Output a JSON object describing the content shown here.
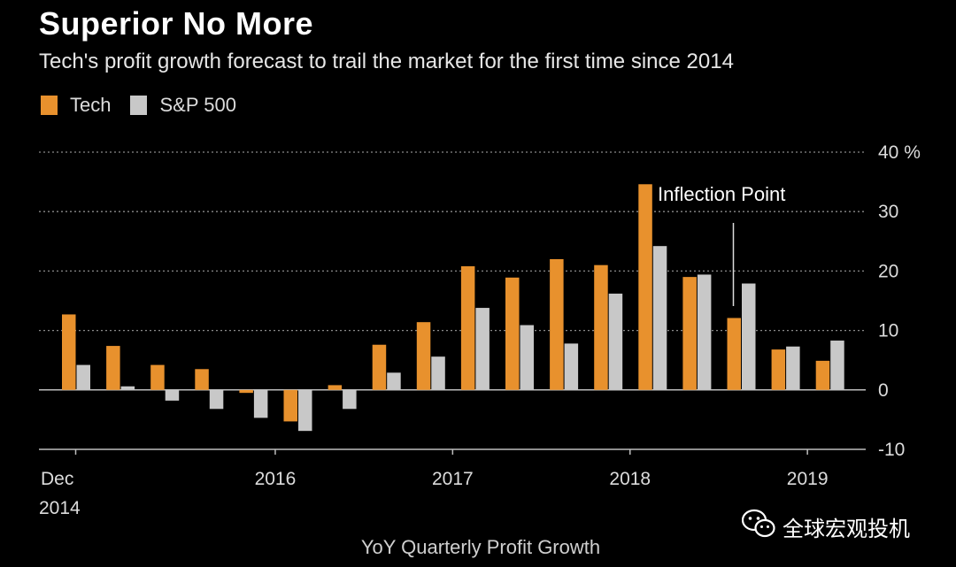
{
  "chart_data": {
    "type": "bar",
    "title": "Superior No More",
    "subtitle": "Tech's profit growth forecast to trail the market for the first time since 2014",
    "xlabel": "YoY Quarterly Profit Growth",
    "ylabel": "",
    "ylim": [
      -10,
      40
    ],
    "yticks": [
      -10,
      0,
      10,
      20,
      30,
      40
    ],
    "ytick_labels": [
      "-10",
      "0",
      "10",
      "20",
      "30",
      "40 %"
    ],
    "grid": true,
    "legend_position": "top-left",
    "categories": [
      "Q4 2014",
      "Q1 2015",
      "Q2 2015",
      "Q3 2015",
      "Q4 2015",
      "Q1 2016",
      "Q2 2016",
      "Q3 2016",
      "Q4 2016",
      "Q1 2017",
      "Q2 2017",
      "Q3 2017",
      "Q4 2017",
      "Q1 2018",
      "Q2 2018",
      "Q3 2018",
      "Q4 2018",
      "Q1 2019"
    ],
    "series": [
      {
        "name": "Tech",
        "color": "#e8912d",
        "values": [
          12.7,
          7.4,
          4.2,
          3.5,
          -0.5,
          -5.3,
          0.8,
          7.6,
          11.4,
          20.8,
          18.9,
          22.0,
          21.0,
          34.6,
          19.0,
          12.1,
          6.8,
          4.9
        ]
      },
      {
        "name": "S&P 500",
        "color": "#c8c8c8",
        "values": [
          4.2,
          0.6,
          -1.8,
          -3.2,
          -4.7,
          -6.9,
          -3.2,
          2.9,
          5.6,
          13.8,
          10.9,
          7.8,
          16.2,
          24.2,
          19.4,
          17.9,
          7.3,
          8.3
        ]
      }
    ],
    "xtick_labels": [
      {
        "text": "Dec",
        "text2": "2014",
        "index": 0
      },
      {
        "text": "2016",
        "index": 4.5
      },
      {
        "text": "2017",
        "index": 8.5
      },
      {
        "text": "2018",
        "index": 12.5
      },
      {
        "text": "2019",
        "index": 16.5
      }
    ],
    "annotation": {
      "text": "Inflection Point",
      "index": 15
    }
  },
  "watermark": {
    "text": "全球宏观投机",
    "icon": "wechat-icon"
  }
}
